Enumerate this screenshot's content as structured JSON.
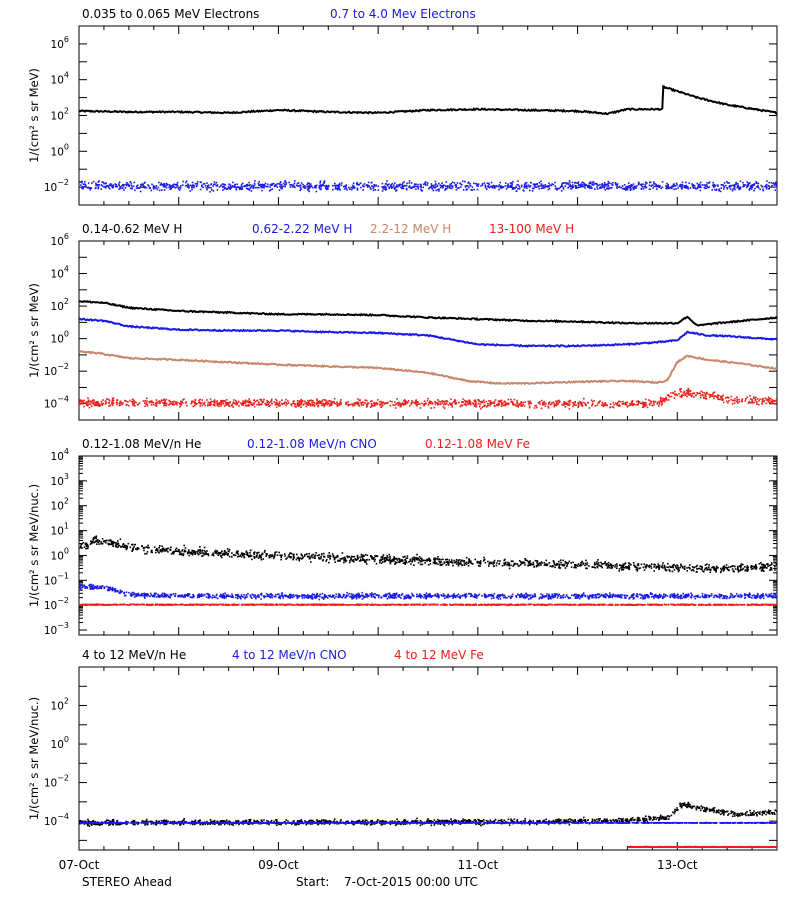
{
  "colors": {
    "black": "#000000",
    "blue": "#1a1ae6",
    "tan": "#c8876b",
    "red": "#e8201b"
  },
  "xaxis": {
    "tick_labels": [
      "07-Oct",
      "09-Oct",
      "11-Oct",
      "13-Oct"
    ],
    "tick_days": [
      0,
      2,
      4,
      6
    ],
    "range_days": [
      0,
      7
    ]
  },
  "footer": {
    "left": "STEREO Ahead",
    "start_label": "Start:",
    "start_value": "7-Oct-2015 00:00 UTC"
  },
  "chart_data": [
    {
      "type": "scatter",
      "panel": "electrons",
      "legend": [
        "0.035 to 0.065 MeV Electrons",
        "0.7 to 4.0 Mev Electrons"
      ],
      "ylabel": "1/(cm² s sr MeV)",
      "yscale": "log",
      "ylim_exp": [
        -3,
        7
      ],
      "ytick_exps": [
        -2,
        0,
        2,
        4,
        6
      ],
      "series": [
        {
          "name": "0.035 to 0.065 MeV Electrons",
          "color": "black",
          "style": "line",
          "x_days": [
            0,
            0.5,
            1.0,
            1.5,
            2.0,
            2.5,
            3.0,
            3.5,
            4.0,
            4.5,
            5.0,
            5.3,
            5.5,
            5.85,
            5.86,
            6.2,
            6.5,
            7.0
          ],
          "y_exp": [
            2.25,
            2.2,
            2.2,
            2.15,
            2.3,
            2.2,
            2.15,
            2.3,
            2.35,
            2.3,
            2.25,
            2.1,
            2.35,
            2.35,
            3.6,
            3.0,
            2.6,
            2.15
          ]
        },
        {
          "name": "0.7 to 4.0 Mev Electrons",
          "color": "blue",
          "style": "points",
          "x_days": [
            0,
            7
          ],
          "y_exp": [
            -1.9,
            -1.9
          ],
          "spread_exp": 0.35
        }
      ]
    },
    {
      "type": "scatter",
      "panel": "protons",
      "legend": [
        "0.14-0.62 MeV H",
        "0.62-2.22 MeV H",
        "2.2-12 MeV H",
        "13-100 MeV H"
      ],
      "ylabel": "1/(cm² s sr MeV)",
      "yscale": "log",
      "ylim_exp": [
        -5,
        6
      ],
      "ytick_exps": [
        -4,
        -2,
        0,
        2,
        4,
        6
      ],
      "series": [
        {
          "name": "0.14-0.62 MeV H",
          "color": "black",
          "style": "line",
          "x_days": [
            0,
            0.25,
            0.5,
            1.0,
            1.5,
            2.0,
            2.5,
            3.0,
            3.5,
            4.0,
            4.5,
            5.0,
            5.5,
            5.85,
            6.0,
            6.1,
            6.2,
            6.4,
            6.5,
            7.0
          ],
          "y_exp": [
            2.3,
            2.2,
            1.9,
            1.7,
            1.6,
            1.5,
            1.5,
            1.45,
            1.3,
            1.2,
            1.1,
            1.05,
            0.95,
            0.95,
            0.95,
            1.35,
            0.8,
            0.95,
            1.0,
            1.3
          ]
        },
        {
          "name": "0.62-2.22 MeV H",
          "color": "blue",
          "style": "line",
          "x_days": [
            0,
            0.25,
            0.5,
            1.0,
            1.5,
            2.0,
            2.5,
            3.0,
            3.5,
            4.0,
            4.5,
            5.0,
            5.5,
            5.85,
            6.0,
            6.1,
            6.3,
            6.5,
            7.0
          ],
          "y_exp": [
            1.2,
            1.1,
            0.75,
            0.55,
            0.5,
            0.5,
            0.4,
            0.35,
            0.2,
            -0.35,
            -0.45,
            -0.45,
            -0.35,
            -0.2,
            -0.1,
            0.4,
            0.2,
            0.15,
            -0.05
          ]
        },
        {
          "name": "2.2-12 MeV H",
          "color": "tan",
          "style": "line",
          "x_days": [
            0,
            0.2,
            0.5,
            1.0,
            1.5,
            2.0,
            2.5,
            3.0,
            3.5,
            3.9,
            4.2,
            4.5,
            5.0,
            5.5,
            5.8,
            5.9,
            6.0,
            6.1,
            6.3,
            6.6,
            7.0
          ],
          "y_exp": [
            -0.8,
            -0.9,
            -1.2,
            -1.3,
            -1.45,
            -1.6,
            -1.7,
            -1.8,
            -2.1,
            -2.6,
            -2.75,
            -2.75,
            -2.65,
            -2.6,
            -2.7,
            -2.55,
            -1.45,
            -1.05,
            -1.3,
            -1.5,
            -1.85
          ]
        },
        {
          "name": "13-100 MeV H",
          "color": "red",
          "style": "points",
          "x_days": [
            0,
            5.8,
            5.95,
            6.1,
            6.5,
            7.0
          ],
          "y_exp": [
            -3.9,
            -3.95,
            -3.4,
            -3.25,
            -3.7,
            -3.8
          ],
          "spread_exp": 0.35
        }
      ]
    },
    {
      "type": "scatter",
      "panel": "heavy_low",
      "legend": [
        "0.12-1.08 MeV/n He",
        "0.12-1.08 MeV/n CNO",
        "0.12-1.08 MeV Fe"
      ],
      "ylabel": "1/(cm² s sr MeV/nuc.)",
      "yscale": "log",
      "ylim_exp": [
        -3.2,
        4
      ],
      "ytick_exps": [
        -3,
        -2,
        -1,
        0,
        1,
        2,
        3,
        4
      ],
      "series": [
        {
          "name": "0.12-1.08 MeV/n He",
          "color": "black",
          "style": "points",
          "x_days": [
            0,
            0.15,
            0.3,
            0.6,
            1.0,
            1.5,
            2.0,
            2.5,
            3.0,
            3.5,
            4.0,
            4.5,
            5.0,
            5.5,
            6.0,
            6.5,
            7.0
          ],
          "y_exp": [
            0.35,
            0.65,
            0.55,
            0.3,
            0.2,
            0.1,
            0.0,
            -0.05,
            -0.1,
            -0.2,
            -0.25,
            -0.3,
            -0.35,
            -0.4,
            -0.45,
            -0.5,
            -0.4
          ],
          "spread_exp": 0.25
        },
        {
          "name": "0.12-1.08 MeV/n CNO",
          "color": "blue",
          "style": "points",
          "x_days": [
            0,
            0.3,
            0.5,
            1.0,
            2.0,
            3.0,
            4.0,
            7.0
          ],
          "y_exp": [
            -1.2,
            -1.3,
            -1.55,
            -1.6,
            -1.6,
            -1.6,
            -1.6,
            -1.6
          ],
          "spread_exp": 0.15
        },
        {
          "name": "0.12-1.08 MeV Fe",
          "color": "red",
          "style": "points",
          "x_days": [
            0,
            7
          ],
          "y_exp": [
            -1.95,
            -1.95
          ],
          "spread_exp": 0.03
        }
      ]
    },
    {
      "type": "scatter",
      "panel": "heavy_high",
      "legend": [
        "4 to 12 MeV/n He",
        "4 to 12 MeV/n CNO",
        "4 to 12 MeV Fe"
      ],
      "ylabel": "1/(cm² s sr MeV/nuc.)",
      "yscale": "log",
      "ylim_exp": [
        -5.5,
        4
      ],
      "ytick_exps": [
        -4,
        -2,
        0,
        2
      ],
      "series": [
        {
          "name": "4 to 12 MeV/n He",
          "color": "black",
          "style": "points",
          "x_days": [
            0,
            4.5,
            5.5,
            5.9,
            6.05,
            6.3,
            6.6,
            7.0
          ],
          "y_exp": [
            -4.05,
            -4.0,
            -3.9,
            -3.8,
            -3.05,
            -3.4,
            -3.6,
            -3.5
          ],
          "spread_exp": 0.2
        },
        {
          "name": "4 to 12 MeV/n CNO",
          "color": "blue",
          "style": "points",
          "x_days": [
            0,
            7
          ],
          "y_exp": [
            -4.05,
            -4.05
          ],
          "spread_exp": 0.02
        },
        {
          "name": "4 to 12 MeV Fe",
          "color": "red",
          "style": "points",
          "x_days": [
            5.5,
            7
          ],
          "y_exp": [
            -5.3,
            -5.3
          ],
          "spread_exp": 0.02
        }
      ]
    }
  ]
}
